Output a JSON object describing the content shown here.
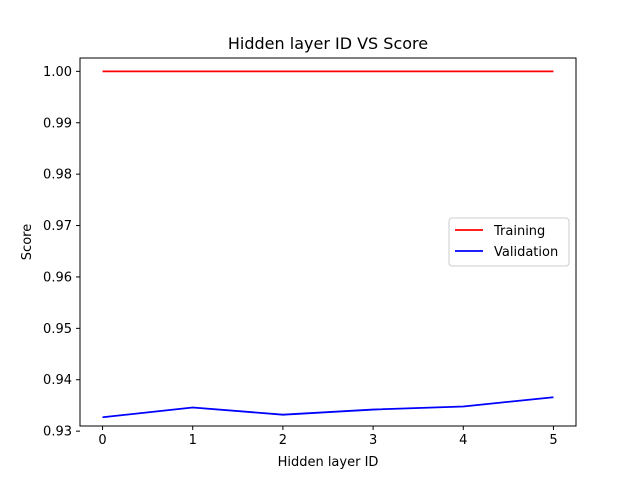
{
  "chart_data": {
    "type": "line",
    "title": "Hidden layer ID VS Score",
    "xlabel": "Hidden layer ID",
    "ylabel": "Score",
    "x": [
      0,
      1,
      2,
      3,
      4,
      5
    ],
    "xlim": [
      -0.25,
      5.25
    ],
    "ylim": [
      0.931,
      1.0026
    ],
    "xticks": [
      "0",
      "1",
      "2",
      "3",
      "4",
      "5"
    ],
    "yticks": [
      "0.93",
      "0.94",
      "0.95",
      "0.96",
      "0.97",
      "0.98",
      "0.99",
      "1.00"
    ],
    "grid": false,
    "legend_position": "center-right",
    "series": [
      {
        "name": "Training",
        "color": "#ff0000",
        "values": [
          1.0,
          1.0,
          1.0,
          1.0,
          1.0,
          1.0
        ]
      },
      {
        "name": "Validation",
        "color": "#0000ff",
        "values": [
          0.9327,
          0.9346,
          0.9332,
          0.9342,
          0.9348,
          0.9366
        ]
      }
    ]
  }
}
